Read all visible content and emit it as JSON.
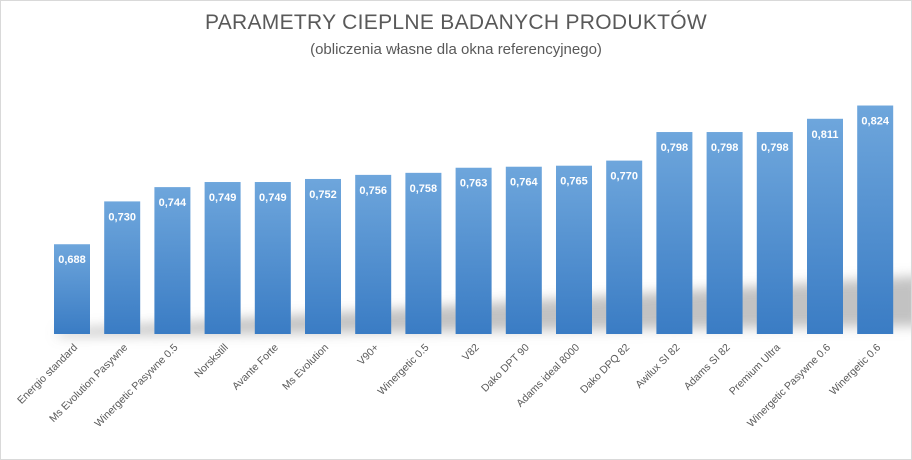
{
  "chart_data": {
    "type": "bar",
    "title": "PARAMETRY CIEPLNE BADANYCH PRODUKTÓW",
    "subtitle": "(obliczenia własne dla okna referencyjnego)",
    "categories": [
      "Energio standard",
      "Ms Evolution Pasywne",
      "Winergetic Pasywne 0.5",
      "Norskstill",
      "Avante Forte",
      "Ms Evolution",
      "V90+",
      "Winergetic 0.5",
      "V82",
      "Dako DPT 90",
      "Adams ideal 8000",
      "Dako DPQ 82",
      "Awilux SI 82",
      "Adams SI 82",
      "Premium Ultra",
      "Winergetic Pasywne 0.6",
      "Winergetic 0.6"
    ],
    "values": [
      0.688,
      0.73,
      0.744,
      0.749,
      0.749,
      0.752,
      0.756,
      0.758,
      0.763,
      0.764,
      0.765,
      0.77,
      0.798,
      0.798,
      0.798,
      0.811,
      0.824
    ],
    "value_labels": [
      "0,688",
      "0,730",
      "0,744",
      "0,749",
      "0,749",
      "0,752",
      "0,756",
      "0,758",
      "0,763",
      "0,764",
      "0,765",
      "0,770",
      "0,798",
      "0,798",
      "0,798",
      "0,811",
      "0,824"
    ],
    "ylim": [
      0.6,
      0.85
    ],
    "grid": false,
    "legend": "none",
    "colors": {
      "bar_top": "#6ea6dc",
      "bar_bottom": "#3a7cc4",
      "text": "#595959"
    }
  }
}
